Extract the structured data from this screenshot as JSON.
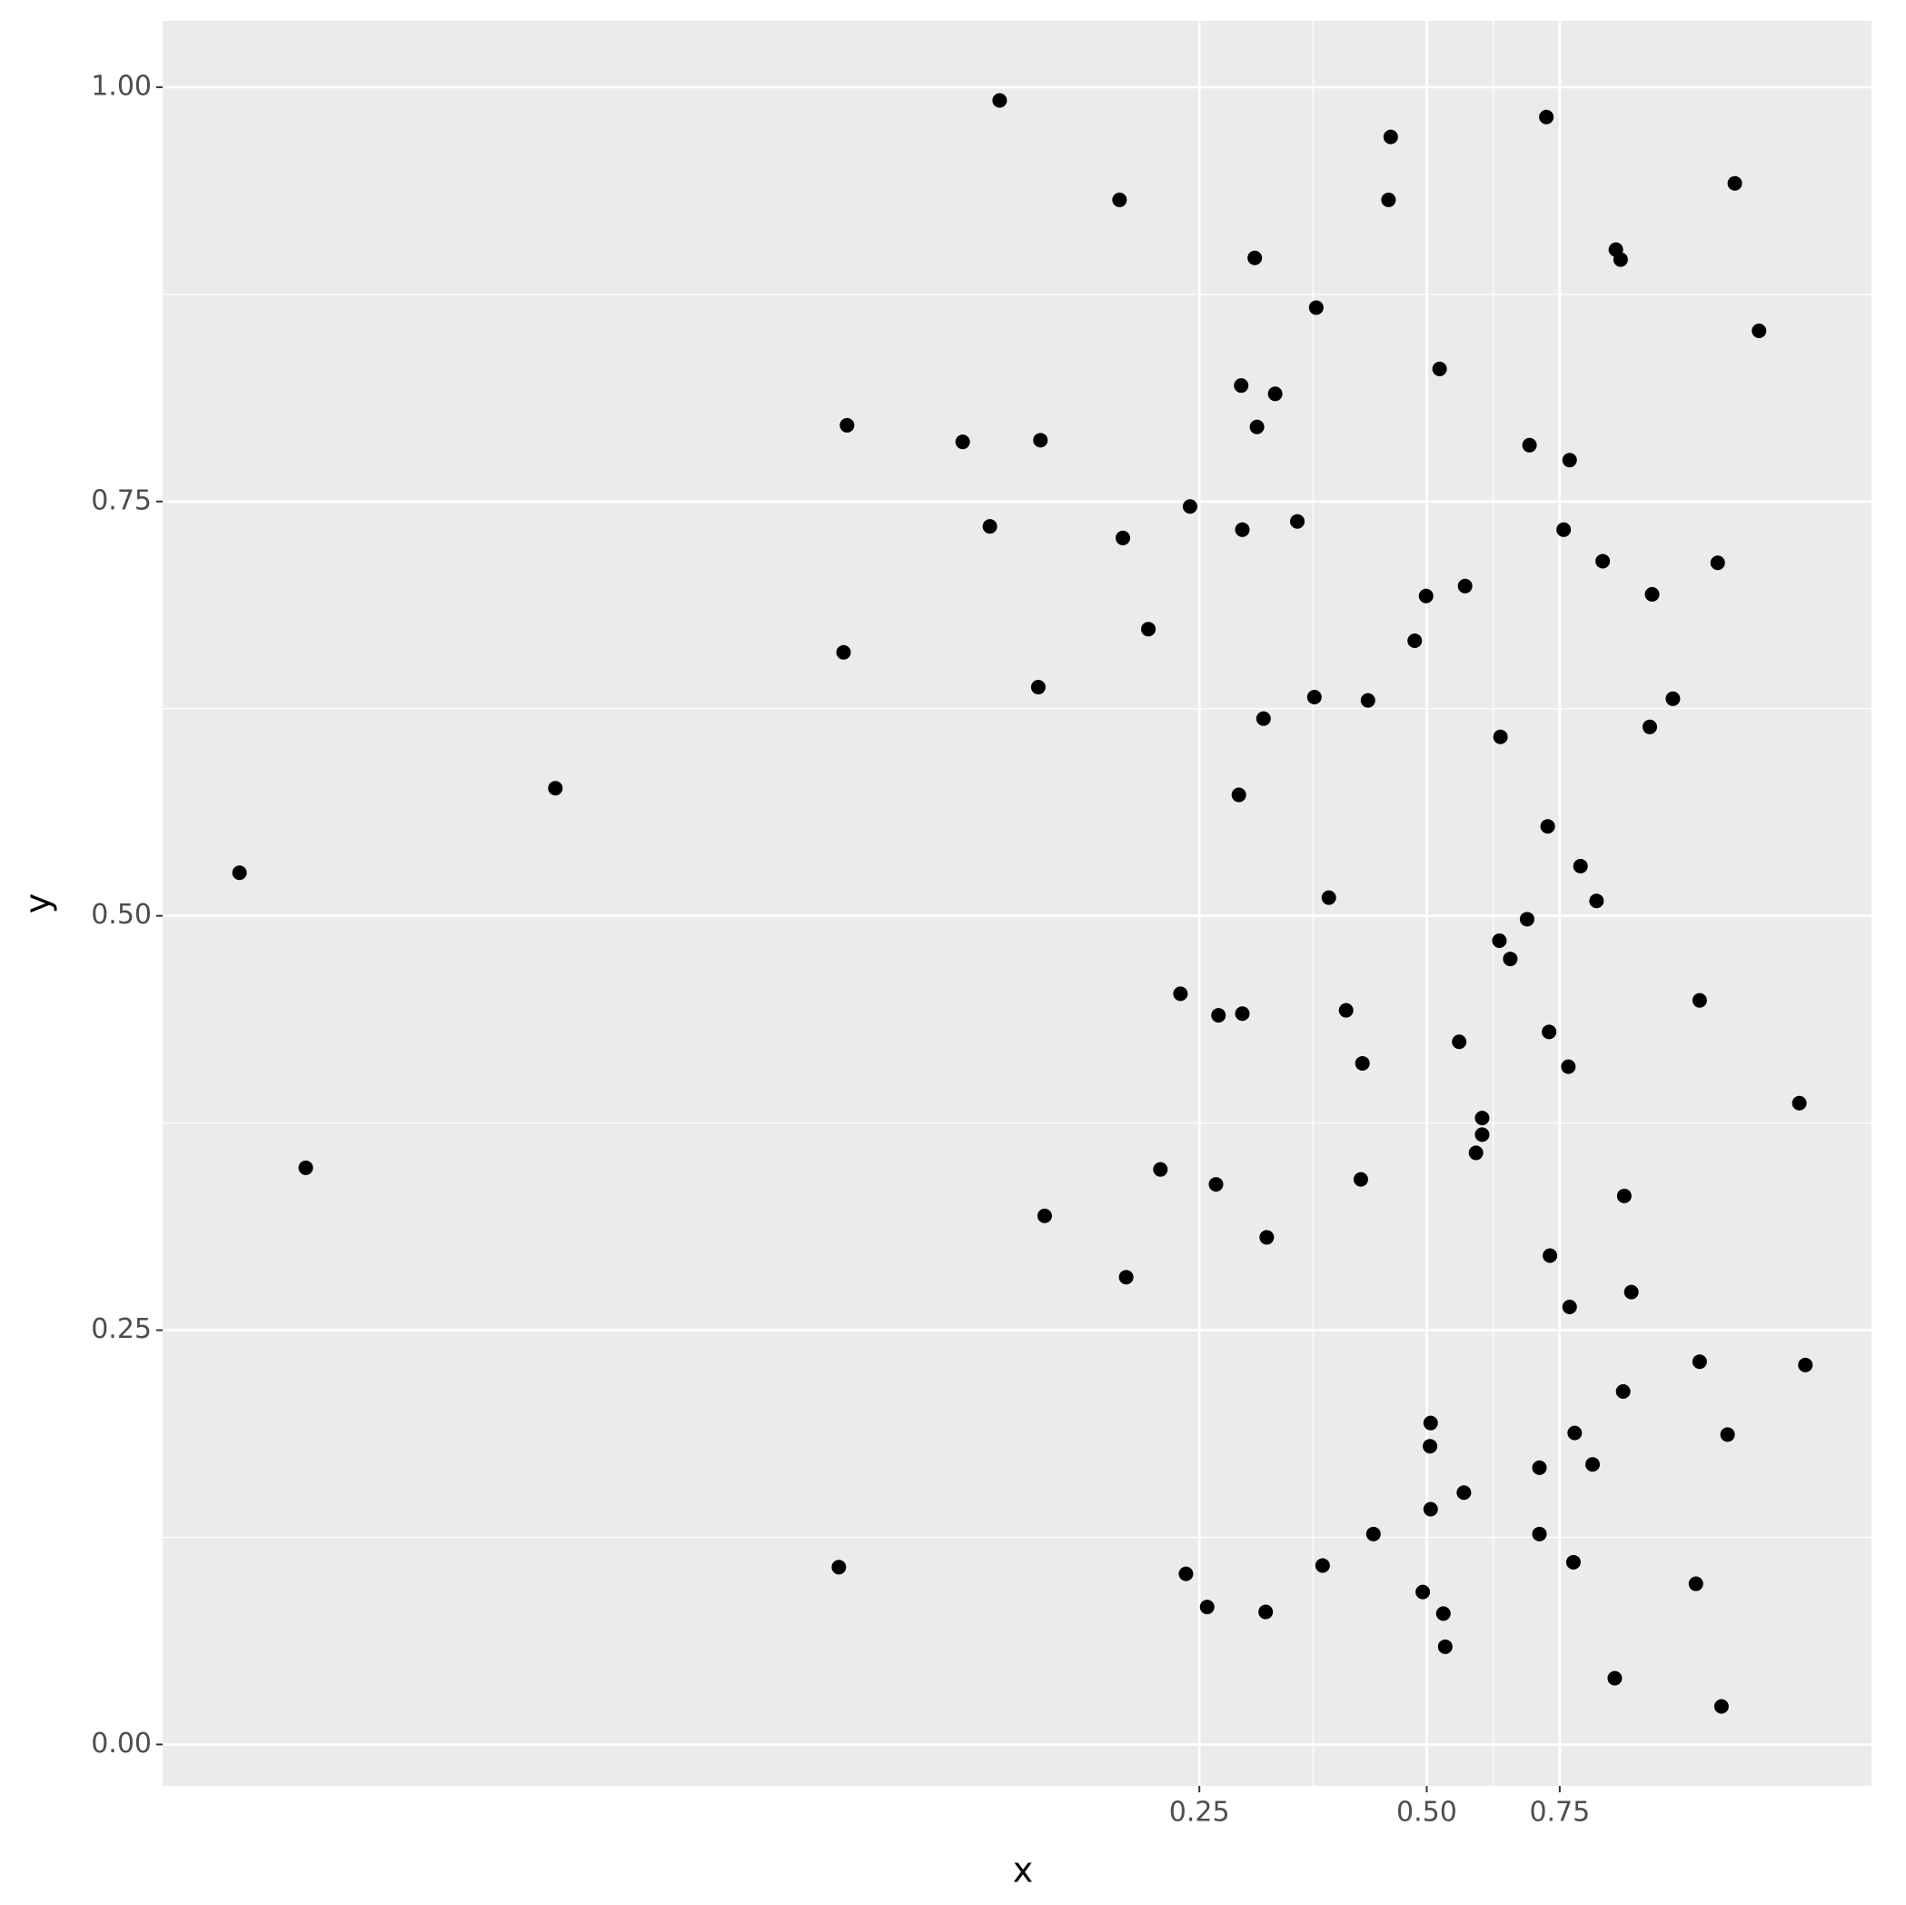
{
  "chart_data": {
    "type": "scatter",
    "xlabel": "x",
    "ylabel": "y",
    "color": "#000000",
    "xscale": "log",
    "grid": true,
    "xlim": [
      0.0106,
      1.94
    ],
    "ylim": [
      -0.025,
      1.04
    ],
    "xticks": [
      {
        "value": 0.25,
        "label": "0.25"
      },
      {
        "value": 0.5,
        "label": "0.50"
      },
      {
        "value": 0.75,
        "label": "0.75"
      }
    ],
    "yticks": [
      {
        "value": 0,
        "label": "0.00"
      },
      {
        "value": 0.25,
        "label": "0.25"
      },
      {
        "value": 0.5,
        "label": "0.50"
      },
      {
        "value": 0.75,
        "label": "0.75"
      },
      {
        "value": 1,
        "label": "1.00"
      }
    ],
    "x": [
      0.0134,
      0.0164,
      0.0351,
      0.0833,
      0.0845,
      0.0854,
      0.1215,
      0.132,
      0.136,
      0.153,
      0.154,
      0.156,
      0.196,
      0.198,
      0.2,
      0.214,
      0.222,
      0.236,
      0.24,
      0.243,
      0.256,
      0.263,
      0.265,
      0.282,
      0.284,
      0.285,
      0.285,
      0.296,
      0.298,
      0.304,
      0.306,
      0.307,
      0.315,
      0.337,
      0.355,
      0.357,
      0.364,
      0.371,
      0.391,
      0.409,
      0.411,
      0.418,
      0.425,
      0.445,
      0.448,
      0.482,
      0.494,
      0.499,
      0.505,
      0.506,
      0.506,
      0.52,
      0.526,
      0.529,
      0.552,
      0.56,
      0.562,
      0.581,
      0.592,
      0.592,
      0.624,
      0.626,
      0.645,
      0.679,
      0.684,
      0.705,
      0.705,
      0.72,
      0.723,
      0.726,
      0.728,
      0.759,
      0.77,
      0.773,
      0.773,
      0.782,
      0.785,
      0.799,
      0.829,
      0.839,
      0.855,
      0.887,
      0.89,
      0.903,
      0.91,
      0.913,
      0.933,
      0.987,
      0.994,
      1.059,
      1.136,
      1.149,
      1.149,
      1.214,
      1.228,
      1.251,
      1.279,
      1.377,
      1.557,
      1.586
    ],
    "y": [
      0.526,
      0.348,
      0.577,
      0.107,
      0.659,
      0.796,
      0.786,
      0.735,
      0.992,
      0.638,
      0.787,
      0.319,
      0.932,
      0.728,
      0.282,
      0.673,
      0.347,
      0.453,
      0.103,
      0.747,
      0.083,
      0.338,
      0.44,
      0.573,
      0.82,
      0.441,
      0.733,
      0.897,
      0.795,
      0.619,
      0.08,
      0.306,
      0.815,
      0.738,
      0.632,
      0.867,
      0.108,
      0.511,
      0.443,
      0.341,
      0.411,
      0.63,
      0.127,
      0.932,
      0.97,
      0.666,
      0.092,
      0.693,
      0.18,
      0.194,
      0.142,
      0.83,
      0.079,
      0.059,
      0.424,
      0.152,
      0.699,
      0.357,
      0.368,
      0.378,
      0.485,
      0.608,
      0.474,
      0.498,
      0.784,
      0.167,
      0.127,
      0.982,
      0.554,
      0.43,
      0.295,
      0.733,
      0.409,
      0.775,
      0.264,
      0.11,
      0.188,
      0.53,
      0.169,
      0.509,
      0.714,
      0.04,
      0.902,
      0.896,
      0.213,
      0.331,
      0.273,
      0.614,
      0.694,
      0.631,
      0.097,
      0.449,
      0.231,
      0.713,
      0.023,
      0.187,
      0.942,
      0.853,
      0.387,
      0.229
    ]
  }
}
